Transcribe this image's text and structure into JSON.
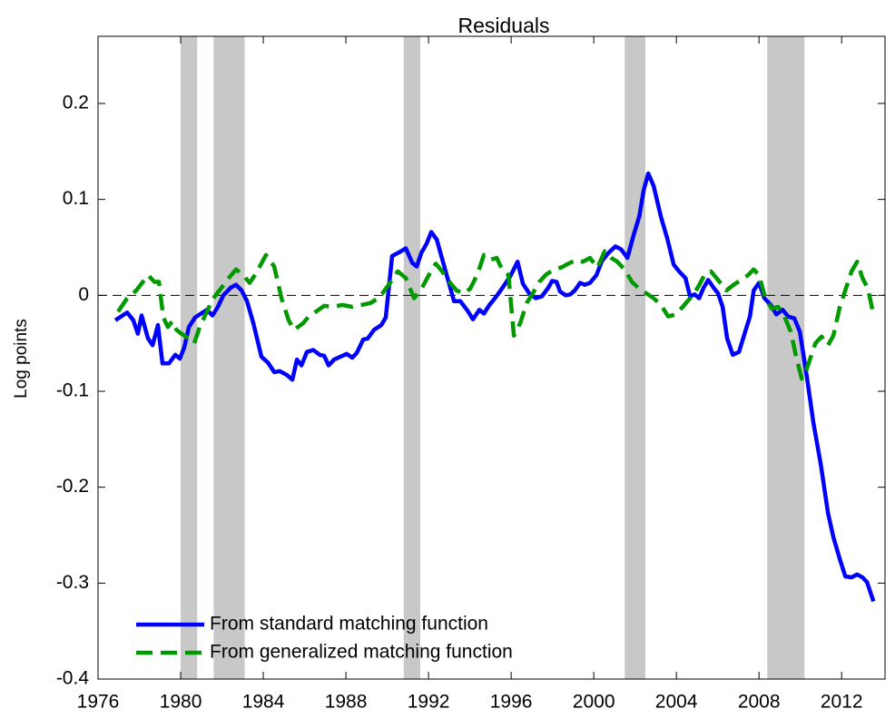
{
  "chart_data": {
    "type": "line",
    "title": "Residuals",
    "y_label": "Log points",
    "xlim": [
      1976,
      2014.1
    ],
    "xticks": [
      1976,
      1980,
      1984,
      1988,
      1992,
      1996,
      2000,
      2004,
      2008,
      2012
    ],
    "ylim": [
      -0.4,
      0.27
    ],
    "yticks": [
      -0.4,
      -0.3,
      -0.2,
      -0.1,
      0,
      0.1,
      0.2
    ],
    "reference_line": 0,
    "shaded_periods": [
      [
        1980.0,
        1980.8
      ],
      [
        1981.6,
        1983.1
      ],
      [
        1990.8,
        1991.6
      ],
      [
        2001.5,
        2002.5
      ],
      [
        2008.4,
        2010.2
      ]
    ],
    "shade_color": "#c8c8c8",
    "legend": "lower left",
    "series": [
      {
        "name": "From standard matching function",
        "color": "#0000ff",
        "dash": false,
        "x": [
          1976.84,
          1977.41,
          1977.71,
          1977.93,
          1978.11,
          1978.42,
          1978.64,
          1978.9,
          1979.12,
          1979.43,
          1979.74,
          1979.96,
          1980.18,
          1980.4,
          1980.7,
          1981.27,
          1981.54,
          1981.8,
          1982.07,
          1982.42,
          1982.68,
          1982.95,
          1983.21,
          1983.52,
          1983.91,
          1984.22,
          1984.53,
          1984.79,
          1985.14,
          1985.41,
          1985.63,
          1985.85,
          1986.11,
          1986.42,
          1986.73,
          1986.95,
          1987.16,
          1987.43,
          1988.04,
          1988.31,
          1988.53,
          1988.84,
          1989.05,
          1989.36,
          1989.71,
          1989.93,
          1990.24,
          1990.59,
          1990.9,
          1991.21,
          1991.43,
          1991.65,
          1991.91,
          1992.13,
          1992.4,
          1992.7,
          1993.01,
          1993.23,
          1993.54,
          1993.89,
          1994.15,
          1994.46,
          1994.68,
          1994.95,
          1995.25,
          1995.52,
          1995.96,
          1996.31,
          1996.57,
          1996.88,
          1997.19,
          1997.49,
          1997.8,
          1997.98,
          1998.2,
          1998.37,
          1998.64,
          1998.86,
          1999.08,
          1999.34,
          1999.56,
          1999.82,
          2000.13,
          2000.4,
          2000.7,
          2001.05,
          2001.32,
          2001.63,
          2001.93,
          2002.2,
          2002.42,
          2002.64,
          2002.9,
          2003.25,
          2003.56,
          2003.87,
          2004.13,
          2004.44,
          2004.66,
          2004.88,
          2005.1,
          2005.32,
          2005.54,
          2005.8,
          2006.02,
          2006.24,
          2006.46,
          2006.73,
          2007.03,
          2007.3,
          2007.56,
          2007.74,
          2008.0,
          2008.26,
          2008.57,
          2008.84,
          2009.14,
          2009.41,
          2009.71,
          2009.98,
          2010.33,
          2010.64,
          2010.99,
          2011.34,
          2011.6,
          2011.91,
          2012.18,
          2012.48,
          2012.75,
          2013.01,
          2013.23,
          2013.54
        ],
        "values": [
          -0.026,
          -0.018,
          -0.026,
          -0.04,
          -0.021,
          -0.045,
          -0.052,
          -0.031,
          -0.071,
          -0.071,
          -0.062,
          -0.066,
          -0.054,
          -0.033,
          -0.023,
          -0.015,
          -0.021,
          -0.012,
          0.0,
          0.008,
          0.011,
          0.005,
          -0.006,
          -0.029,
          -0.064,
          -0.07,
          -0.08,
          -0.079,
          -0.083,
          -0.088,
          -0.067,
          -0.073,
          -0.059,
          -0.057,
          -0.062,
          -0.063,
          -0.073,
          -0.067,
          -0.061,
          -0.065,
          -0.06,
          -0.046,
          -0.045,
          -0.036,
          -0.031,
          -0.023,
          0.041,
          0.045,
          0.049,
          0.034,
          0.03,
          0.044,
          0.054,
          0.066,
          0.058,
          0.035,
          0.011,
          -0.006,
          -0.006,
          -0.016,
          -0.025,
          -0.015,
          -0.019,
          -0.01,
          -0.002,
          0.006,
          0.02,
          0.035,
          0.012,
          0.002,
          -0.003,
          -0.001,
          0.008,
          0.015,
          0.014,
          0.004,
          0.0,
          0.001,
          0.005,
          0.013,
          0.011,
          0.013,
          0.021,
          0.036,
          0.044,
          0.051,
          0.048,
          0.039,
          0.063,
          0.082,
          0.11,
          0.127,
          0.114,
          0.082,
          0.059,
          0.032,
          0.025,
          0.018,
          -0.001,
          0.001,
          -0.003,
          0.008,
          0.016,
          0.008,
          0.002,
          -0.012,
          -0.045,
          -0.062,
          -0.059,
          -0.04,
          -0.022,
          0.005,
          0.013,
          -0.003,
          -0.01,
          -0.02,
          -0.015,
          -0.022,
          -0.024,
          -0.038,
          -0.087,
          -0.134,
          -0.176,
          -0.227,
          -0.252,
          -0.275,
          -0.293,
          -0.294,
          -0.291,
          -0.294,
          -0.299,
          -0.319
        ]
      },
      {
        "name": "From generalized matching function",
        "color": "#009900",
        "dash": true,
        "x": [
          1976.97,
          1977.41,
          1977.85,
          1978.42,
          1978.73,
          1978.95,
          1979.16,
          1979.38,
          1979.6,
          1979.8,
          1980.04,
          1980.4,
          1980.66,
          1980.92,
          1981.27,
          1981.58,
          1981.98,
          1982.33,
          1982.68,
          1983.03,
          1983.34,
          1983.65,
          1984.13,
          1984.53,
          1984.88,
          1985.23,
          1985.49,
          1985.93,
          1986.2,
          1986.55,
          1986.95,
          1987.38,
          1987.82,
          1988.31,
          1988.75,
          1989.19,
          1989.63,
          1990.07,
          1990.51,
          1990.9,
          1991.3,
          1991.69,
          1992.04,
          1992.35,
          1992.66,
          1993.01,
          1993.36,
          1993.71,
          1994.02,
          1994.37,
          1994.68,
          1994.99,
          1995.3,
          1995.56,
          1995.87,
          1996.13,
          1996.44,
          1996.75,
          1997.05,
          1997.36,
          1997.71,
          1998.07,
          1998.42,
          1998.77,
          1999.16,
          1999.47,
          1999.82,
          2000.18,
          2000.53,
          2000.84,
          2001.14,
          2001.49,
          2001.85,
          2002.2,
          2002.55,
          2002.9,
          2003.25,
          2003.6,
          2003.96,
          2004.31,
          2004.66,
          2005.01,
          2005.36,
          2005.67,
          2006.02,
          2006.42,
          2006.77,
          2007.12,
          2007.47,
          2007.74,
          2008.0,
          2008.31,
          2008.62,
          2008.92,
          2009.23,
          2009.54,
          2009.8,
          2010.07,
          2010.29,
          2010.51,
          2010.73,
          2011.03,
          2011.34,
          2011.6,
          2011.91,
          2012.22,
          2012.48,
          2012.75,
          2013.01,
          2013.27,
          2013.54
        ],
        "values": [
          -0.017,
          -0.003,
          0.005,
          0.021,
          0.014,
          0.014,
          -0.023,
          -0.033,
          -0.027,
          -0.036,
          -0.04,
          -0.045,
          -0.05,
          -0.033,
          -0.017,
          -0.003,
          0.008,
          0.018,
          0.027,
          0.021,
          0.013,
          0.023,
          0.042,
          0.03,
          -0.003,
          -0.026,
          -0.036,
          -0.029,
          -0.022,
          -0.017,
          -0.011,
          -0.012,
          -0.01,
          -0.012,
          -0.01,
          -0.008,
          -0.002,
          0.011,
          0.025,
          0.018,
          -0.003,
          0.008,
          0.022,
          0.033,
          0.025,
          0.014,
          0.005,
          0.002,
          0.007,
          0.022,
          0.042,
          0.037,
          0.039,
          0.027,
          0.021,
          -0.042,
          -0.029,
          -0.008,
          0.002,
          0.014,
          0.022,
          0.027,
          0.029,
          0.033,
          0.037,
          0.035,
          0.039,
          0.029,
          0.046,
          0.039,
          0.035,
          0.027,
          0.014,
          0.007,
          0.002,
          -0.003,
          -0.01,
          -0.022,
          -0.02,
          -0.012,
          -0.003,
          0.007,
          0.021,
          0.025,
          0.016,
          0.005,
          0.011,
          0.016,
          0.021,
          0.027,
          0.021,
          -0.003,
          -0.014,
          -0.012,
          -0.022,
          -0.038,
          -0.064,
          -0.087,
          -0.078,
          -0.064,
          -0.05,
          -0.043,
          -0.052,
          -0.042,
          -0.012,
          0.008,
          0.025,
          0.035,
          0.018,
          0.007,
          -0.02
        ]
      }
    ]
  }
}
